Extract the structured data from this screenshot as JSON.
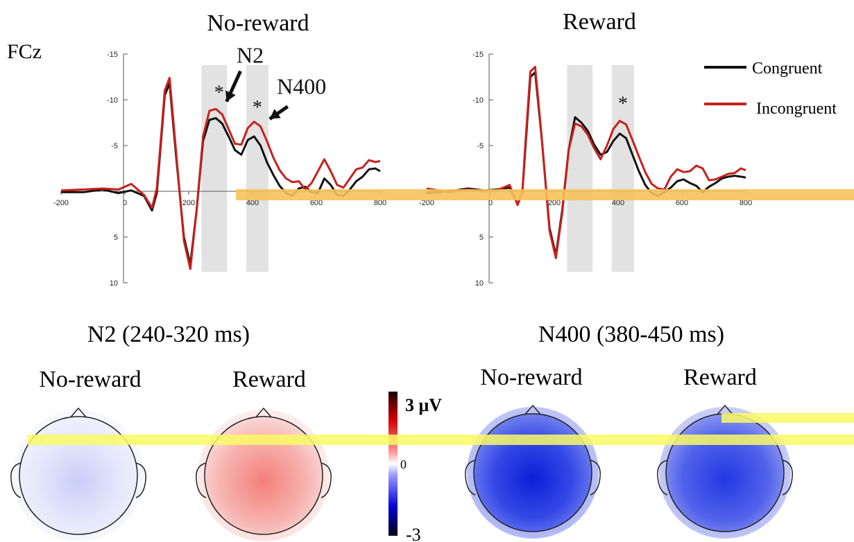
{
  "electrode": "FCz",
  "colors": {
    "congruent": "#111111",
    "incongruent": "#c8201c",
    "shade": "#e2e2e2",
    "scalp_positive": "#e8403a",
    "scalp_negative": "#1430d8",
    "scalp_outline": "#222222",
    "artifact_yellow": "#fafa64",
    "artifact_orange": "#f6c25a"
  },
  "legend": {
    "placement": "top-right",
    "items": [
      {
        "label": "Congruent",
        "color": "#111111"
      },
      {
        "label": "Incongruent",
        "color": "#c8201c"
      }
    ]
  },
  "chart_data": [
    {
      "type": "line",
      "title": "No-reward",
      "xlim": [
        -200,
        800
      ],
      "ylim": [
        -15,
        10
      ],
      "y_inverted": true,
      "x_ticks": [
        "-200",
        "0",
        "200",
        "400",
        "600",
        "800"
      ],
      "y_ticks": [
        "-15",
        "-10",
        "-5",
        "5",
        "10"
      ],
      "windows": [
        [
          240,
          320
        ],
        [
          380,
          450
        ]
      ],
      "annotations": [
        {
          "label": "N2",
          "x": 310,
          "y": -9.5
        },
        {
          "label": "N400",
          "x": 445,
          "y": -7.6
        }
      ],
      "significance": [
        {
          "label": "*",
          "x": 295,
          "y": -10.1
        },
        {
          "label": "*",
          "x": 415,
          "y": -8.5
        }
      ],
      "series": [
        {
          "name": "Congruent",
          "x": [
            -200,
            -130,
            -70,
            -20,
            20,
            60,
            85,
            100,
            110,
            125,
            140,
            160,
            185,
            205,
            225,
            245,
            265,
            285,
            305,
            325,
            345,
            365,
            385,
            405,
            425,
            445,
            465,
            485,
            505,
            525,
            545,
            565,
            585,
            605,
            625,
            645,
            665,
            685,
            705,
            725,
            745,
            765,
            785,
            800
          ],
          "y": [
            0.1,
            0.1,
            -0.2,
            0.2,
            -0.1,
            0.5,
            2.1,
            0.2,
            -4,
            -10.5,
            -11.8,
            -4,
            5,
            8,
            2,
            -5.5,
            -7.8,
            -8,
            -7.4,
            -6,
            -4.5,
            -4,
            -5.6,
            -6,
            -5,
            -3.2,
            -1.8,
            -0.6,
            0.2,
            0.5,
            -0.3,
            -0.5,
            0.1,
            0.2,
            -1.4,
            -0.7,
            0.4,
            0.5,
            -0.2,
            -1.1,
            -1.6,
            -2.4,
            -2.5,
            -2.2
          ]
        },
        {
          "name": "Incongruent",
          "x": [
            -200,
            -130,
            -70,
            -20,
            20,
            60,
            85,
            100,
            110,
            125,
            140,
            160,
            185,
            205,
            225,
            245,
            265,
            285,
            305,
            325,
            345,
            365,
            385,
            405,
            425,
            445,
            465,
            485,
            505,
            525,
            545,
            565,
            585,
            605,
            625,
            645,
            665,
            685,
            705,
            725,
            745,
            765,
            785,
            800
          ],
          "y": [
            -0.1,
            -0.2,
            -0.3,
            -0.2,
            -0.8,
            0.4,
            1.8,
            -0.3,
            -4.5,
            -11,
            -12.4,
            -4.5,
            5.4,
            8.5,
            2,
            -6,
            -8.8,
            -9,
            -8.4,
            -6.8,
            -5.2,
            -5.1,
            -6.9,
            -7.6,
            -7.1,
            -5.5,
            -3.7,
            -2.3,
            -1.4,
            -1,
            -1.1,
            -0.2,
            -0.9,
            -2.2,
            -3.5,
            -2.2,
            -0.7,
            -0.4,
            -1.4,
            -2.4,
            -2.6,
            -3.4,
            -3.2,
            -3.3
          ]
        }
      ]
    },
    {
      "type": "line",
      "title": "Reward",
      "xlim": [
        -200,
        800
      ],
      "ylim": [
        -15,
        10
      ],
      "y_inverted": true,
      "x_ticks": [
        "-200",
        "0",
        "200",
        "400",
        "600",
        "800"
      ],
      "y_ticks": [
        "-15",
        "-10",
        "-5",
        "5",
        "10"
      ],
      "windows": [
        [
          240,
          320
        ],
        [
          380,
          450
        ]
      ],
      "annotations": [],
      "significance": [
        {
          "label": "*",
          "x": 415,
          "y": -8.9
        }
      ],
      "series": [
        {
          "name": "Congruent",
          "x": [
            -200,
            -130,
            -70,
            -20,
            20,
            60,
            85,
            100,
            110,
            125,
            140,
            160,
            185,
            205,
            225,
            245,
            265,
            285,
            305,
            325,
            345,
            365,
            385,
            405,
            425,
            445,
            465,
            485,
            505,
            525,
            545,
            565,
            585,
            605,
            625,
            645,
            665,
            685,
            705,
            725,
            745,
            765,
            785,
            800
          ],
          "y": [
            0.2,
            0,
            -0.3,
            -0.1,
            -0.2,
            -0.4,
            1.4,
            0.1,
            -5,
            -12.5,
            -13,
            -6,
            4,
            7,
            2,
            -4.5,
            -8.1,
            -7.5,
            -6.6,
            -5.1,
            -4,
            -4.3,
            -5.5,
            -6.3,
            -5.8,
            -4,
            -2.2,
            -0.7,
            0.2,
            0.5,
            0.1,
            -0.4,
            -1.1,
            -1.3,
            -0.9,
            -0.6,
            0.1,
            -0.5,
            -0.9,
            -1.4,
            -1.6,
            -1.7,
            -1.6,
            -1.5
          ]
        },
        {
          "name": "Incongruent",
          "x": [
            -200,
            -130,
            -70,
            -20,
            20,
            60,
            85,
            100,
            110,
            125,
            140,
            160,
            185,
            205,
            225,
            245,
            265,
            285,
            305,
            325,
            345,
            365,
            385,
            405,
            425,
            445,
            465,
            485,
            505,
            525,
            545,
            565,
            585,
            605,
            625,
            645,
            665,
            685,
            705,
            725,
            745,
            765,
            785,
            800
          ],
          "y": [
            -0.3,
            0.1,
            -0.2,
            0,
            -0.1,
            -0.7,
            1.5,
            0,
            -5.5,
            -13.1,
            -13.6,
            -6.1,
            4.3,
            7.3,
            2.3,
            -4.5,
            -7.4,
            -7.1,
            -6.2,
            -4.7,
            -3.5,
            -5,
            -6.8,
            -7.7,
            -7.3,
            -5.6,
            -3.8,
            -2.1,
            -0.8,
            -0.3,
            -0.2,
            -1.6,
            -2.4,
            -2.1,
            -2.2,
            -2.8,
            -2.5,
            -1.2,
            -1.3,
            -1.6,
            -1.9,
            -2,
            -2.5,
            -2.3
          ]
        }
      ]
    }
  ],
  "topography": {
    "groups": [
      {
        "title": "N2 (240-320 ms)"
      },
      {
        "title": "N400 (380-450 ms)"
      }
    ],
    "maps": [
      {
        "label": "No-reward",
        "window": "N2",
        "scale": "mild-negative"
      },
      {
        "label": "Reward",
        "window": "N2",
        "scale": "positive"
      },
      {
        "label": "No-reward",
        "window": "N400",
        "scale": "strong-negative"
      },
      {
        "label": "Reward",
        "window": "N400",
        "scale": "moderate-negative"
      }
    ],
    "colorbar": {
      "max_label": "3 μV",
      "mid_label": "0",
      "min_label": "-3",
      "min": -3,
      "max": 3
    }
  }
}
